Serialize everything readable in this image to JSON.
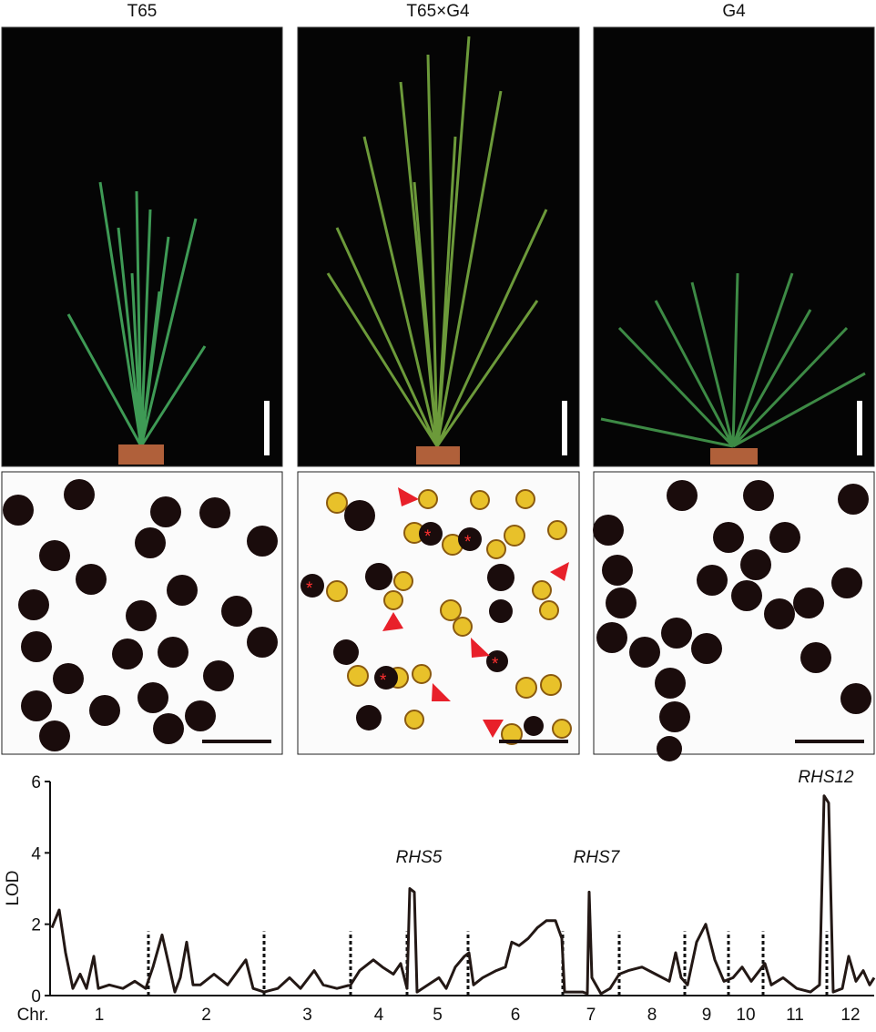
{
  "panels": {
    "titles": [
      "T65",
      "T65×G4",
      "G4"
    ]
  },
  "chart_data": {
    "type": "line",
    "y_label": "LOD",
    "x_label": "Chr.",
    "ylim": [
      0,
      6
    ],
    "yticks": [
      0,
      2,
      4,
      6
    ],
    "xlim": [
      0,
      905
    ],
    "chromosomes": [
      "1",
      "2",
      "3",
      "4",
      "5",
      "6",
      "7",
      "8",
      "9",
      "10",
      "11",
      "12"
    ],
    "boundaries": [
      0,
      108,
      235,
      330,
      392,
      459,
      563,
      625,
      697,
      745,
      783,
      853,
      905
    ],
    "annotations": [
      "RHS5",
      "RHS7",
      "RHS12"
    ],
    "color": "#231815",
    "x": [
      2,
      10,
      17,
      25,
      33,
      40,
      48,
      53,
      65,
      80,
      93,
      105,
      113,
      123,
      131,
      137,
      143,
      150,
      157,
      165,
      180,
      195,
      215,
      223,
      235,
      250,
      263,
      275,
      290,
      300,
      315,
      330,
      340,
      355,
      365,
      377,
      385,
      392,
      395,
      400,
      403,
      415,
      427,
      435,
      445,
      455,
      460,
      465,
      475,
      490,
      500,
      507,
      515,
      525,
      535,
      545,
      555,
      562,
      565,
      585,
      590,
      592,
      595,
      605,
      615,
      625,
      635,
      650,
      665,
      680,
      687,
      693,
      700,
      710,
      720,
      730,
      740,
      750,
      760,
      770,
      785,
      792,
      805,
      820,
      835,
      845,
      850,
      855,
      860,
      870,
      877,
      885,
      893,
      900,
      905
    ],
    "values": [
      1.9,
      2.4,
      1.2,
      0.2,
      0.6,
      0.2,
      1.1,
      0.2,
      0.3,
      0.2,
      0.4,
      0.2,
      0.8,
      1.7,
      0.8,
      0.1,
      0.5,
      1.5,
      0.3,
      0.3,
      0.6,
      0.3,
      1.0,
      0.2,
      0.1,
      0.2,
      0.5,
      0.2,
      0.7,
      0.3,
      0.2,
      0.3,
      0.7,
      1.0,
      0.8,
      0.6,
      0.9,
      0.2,
      3.0,
      2.9,
      0.1,
      0.3,
      0.5,
      0.2,
      0.8,
      1.1,
      1.2,
      0.3,
      0.5,
      0.7,
      0.8,
      1.5,
      1.4,
      1.6,
      1.9,
      2.1,
      2.1,
      1.6,
      0.1,
      0.1,
      0.05,
      2.9,
      0.5,
      0.05,
      0.2,
      0.6,
      0.7,
      0.8,
      0.6,
      0.4,
      1.2,
      0.5,
      0.3,
      1.5,
      2.0,
      1.0,
      0.4,
      0.5,
      0.8,
      0.4,
      0.9,
      0.3,
      0.5,
      0.2,
      0.1,
      0.3,
      5.6,
      5.4,
      0.1,
      0.2,
      1.1,
      0.4,
      0.7,
      0.3,
      0.5
    ]
  }
}
